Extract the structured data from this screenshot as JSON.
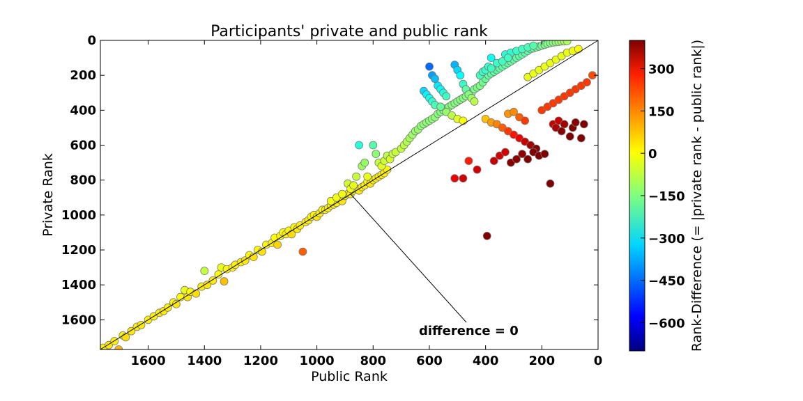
{
  "chart_data": {
    "type": "scatter",
    "title": "Participants' private and public rank",
    "xlabel": "Public Rank",
    "ylabel": "Private Rank",
    "xlim": [
      1770,
      0
    ],
    "ylim": [
      1770,
      0
    ],
    "xticks": [
      1600,
      1400,
      1200,
      1000,
      800,
      600,
      400,
      200,
      0
    ],
    "yticks": [
      0,
      200,
      400,
      600,
      800,
      1000,
      1200,
      1400,
      1600
    ],
    "x_inverted": true,
    "y_inverted": true,
    "color_by": "private rank - public rank",
    "colorbar": {
      "label": "Rank-Difference (= |private rank - public rank|)",
      "range": [
        -700,
        400
      ],
      "ticks": [
        300,
        150,
        0,
        -150,
        -300,
        -450,
        -600
      ],
      "colormap": "jet"
    },
    "reference_line": {
      "description": "y = x",
      "label": "difference = 0"
    },
    "points": [
      [
        1760,
        1760
      ],
      [
        1740,
        1745
      ],
      [
        1720,
        1722
      ],
      [
        1705,
        1770
      ],
      [
        1690,
        1690
      ],
      [
        1680,
        1700
      ],
      [
        1660,
        1665
      ],
      [
        1640,
        1640
      ],
      [
        1625,
        1630
      ],
      [
        1600,
        1600
      ],
      [
        1580,
        1580
      ],
      [
        1560,
        1560
      ],
      [
        1545,
        1550
      ],
      [
        1530,
        1530
      ],
      [
        1510,
        1500
      ],
      [
        1500,
        1510
      ],
      [
        1485,
        1470
      ],
      [
        1470,
        1430
      ],
      [
        1460,
        1470
      ],
      [
        1450,
        1440
      ],
      [
        1430,
        1450
      ],
      [
        1410,
        1410
      ],
      [
        1400,
        1320
      ],
      [
        1390,
        1400
      ],
      [
        1370,
        1375
      ],
      [
        1350,
        1340
      ],
      [
        1340,
        1300
      ],
      [
        1330,
        1380
      ],
      [
        1320,
        1310
      ],
      [
        1300,
        1300
      ],
      [
        1290,
        1285
      ],
      [
        1270,
        1270
      ],
      [
        1255,
        1260
      ],
      [
        1240,
        1230
      ],
      [
        1225,
        1240
      ],
      [
        1210,
        1200
      ],
      [
        1195,
        1210
      ],
      [
        1180,
        1170
      ],
      [
        1160,
        1160
      ],
      [
        1150,
        1130
      ],
      [
        1140,
        1170
      ],
      [
        1130,
        1120
      ],
      [
        1120,
        1100
      ],
      [
        1110,
        1110
      ],
      [
        1100,
        1090
      ],
      [
        1090,
        1110
      ],
      [
        1080,
        1070
      ],
      [
        1070,
        1080
      ],
      [
        1060,
        1060
      ],
      [
        1050,
        1210
      ],
      [
        1040,
        1040
      ],
      [
        1030,
        1030
      ],
      [
        1020,
        1010
      ],
      [
        1010,
        1000
      ],
      [
        1000,
        1010
      ],
      [
        990,
        990
      ],
      [
        980,
        970
      ],
      [
        970,
        970
      ],
      [
        960,
        960
      ],
      [
        950,
        945
      ],
      [
        940,
        940
      ],
      [
        930,
        930
      ],
      [
        920,
        910
      ],
      [
        910,
        920
      ],
      [
        900,
        890
      ],
      [
        890,
        880
      ],
      [
        880,
        880
      ],
      [
        870,
        860
      ],
      [
        860,
        850
      ],
      [
        850,
        860
      ],
      [
        840,
        840
      ],
      [
        830,
        830
      ],
      [
        820,
        810
      ],
      [
        810,
        820
      ],
      [
        800,
        800
      ],
      [
        790,
        790
      ],
      [
        780,
        780
      ],
      [
        770,
        770
      ],
      [
        760,
        760
      ],
      [
        750,
        740
      ],
      [
        950,
        920
      ],
      [
        930,
        900
      ],
      [
        910,
        880
      ],
      [
        890,
        820
      ],
      [
        880,
        850
      ],
      [
        870,
        830
      ],
      [
        860,
        780
      ],
      [
        850,
        600
      ],
      [
        840,
        720
      ],
      [
        830,
        700
      ],
      [
        820,
        780
      ],
      [
        800,
        600
      ],
      [
        790,
        650
      ],
      [
        780,
        700
      ],
      [
        770,
        720
      ],
      [
        760,
        690
      ],
      [
        750,
        660
      ],
      [
        740,
        680
      ],
      [
        730,
        650
      ],
      [
        720,
        640
      ],
      [
        700,
        620
      ],
      [
        690,
        600
      ],
      [
        680,
        580
      ],
      [
        670,
        560
      ],
      [
        660,
        540
      ],
      [
        650,
        520
      ],
      [
        640,
        510
      ],
      [
        630,
        490
      ],
      [
        620,
        480
      ],
      [
        610,
        470
      ],
      [
        600,
        460
      ],
      [
        590,
        450
      ],
      [
        580,
        440
      ],
      [
        570,
        420
      ],
      [
        560,
        410
      ],
      [
        550,
        400
      ],
      [
        540,
        390
      ],
      [
        530,
        380
      ],
      [
        520,
        370
      ],
      [
        510,
        360
      ],
      [
        500,
        350
      ],
      [
        490,
        340
      ],
      [
        480,
        330
      ],
      [
        470,
        320
      ],
      [
        460,
        310
      ],
      [
        450,
        300
      ],
      [
        440,
        280
      ],
      [
        430,
        270
      ],
      [
        420,
        260
      ],
      [
        410,
        240
      ],
      [
        400,
        220
      ],
      [
        390,
        200
      ],
      [
        380,
        190
      ],
      [
        370,
        180
      ],
      [
        360,
        170
      ],
      [
        350,
        160
      ],
      [
        340,
        150
      ],
      [
        330,
        140
      ],
      [
        320,
        130
      ],
      [
        310,
        120
      ],
      [
        300,
        110
      ],
      [
        290,
        100
      ],
      [
        280,
        90
      ],
      [
        270,
        80
      ],
      [
        260,
        70
      ],
      [
        250,
        60
      ],
      [
        240,
        50
      ],
      [
        230,
        45
      ],
      [
        220,
        40
      ],
      [
        210,
        35
      ],
      [
        200,
        30
      ],
      [
        190,
        25
      ],
      [
        180,
        20
      ],
      [
        170,
        15
      ],
      [
        160,
        12
      ],
      [
        150,
        10
      ],
      [
        140,
        8
      ],
      [
        130,
        6
      ],
      [
        120,
        5
      ],
      [
        110,
        4
      ],
      [
        600,
        150
      ],
      [
        590,
        200
      ],
      [
        580,
        220
      ],
      [
        570,
        260
      ],
      [
        560,
        280
      ],
      [
        550,
        300
      ],
      [
        540,
        320
      ],
      [
        510,
        140
      ],
      [
        500,
        170
      ],
      [
        490,
        200
      ],
      [
        480,
        250
      ],
      [
        470,
        280
      ],
      [
        460,
        310
      ],
      [
        450,
        330
      ],
      [
        440,
        350
      ],
      [
        420,
        200
      ],
      [
        410,
        180
      ],
      [
        400,
        170
      ],
      [
        390,
        150
      ],
      [
        380,
        160
      ],
      [
        620,
        290
      ],
      [
        610,
        310
      ],
      [
        600,
        330
      ],
      [
        590,
        350
      ],
      [
        580,
        370
      ],
      [
        560,
        380
      ],
      [
        540,
        410
      ],
      [
        520,
        430
      ],
      [
        500,
        450
      ],
      [
        480,
        460
      ],
      [
        400,
        450
      ],
      [
        380,
        470
      ],
      [
        360,
        480
      ],
      [
        340,
        500
      ],
      [
        320,
        520
      ],
      [
        300,
        540
      ],
      [
        280,
        560
      ],
      [
        260,
        580
      ],
      [
        240,
        600
      ],
      [
        220,
        620
      ],
      [
        370,
        690
      ],
      [
        350,
        660
      ],
      [
        330,
        640
      ],
      [
        310,
        700
      ],
      [
        290,
        680
      ],
      [
        270,
        650
      ],
      [
        250,
        680
      ],
      [
        230,
        640
      ],
      [
        210,
        660
      ],
      [
        190,
        650
      ],
      [
        170,
        820
      ],
      [
        395,
        1120
      ],
      [
        480,
        790
      ],
      [
        460,
        690
      ],
      [
        430,
        740
      ],
      [
        510,
        790
      ],
      [
        160,
        480
      ],
      [
        150,
        500
      ],
      [
        140,
        460
      ],
      [
        130,
        520
      ],
      [
        120,
        480
      ],
      [
        100,
        550
      ],
      [
        90,
        500
      ],
      [
        80,
        470
      ],
      [
        60,
        560
      ],
      [
        50,
        480
      ],
      [
        320,
        420
      ],
      [
        300,
        410
      ],
      [
        280,
        440
      ],
      [
        260,
        460
      ],
      [
        200,
        400
      ],
      [
        180,
        380
      ],
      [
        160,
        360
      ],
      [
        140,
        340
      ],
      [
        120,
        320
      ],
      [
        100,
        300
      ],
      [
        80,
        280
      ],
      [
        60,
        260
      ],
      [
        40,
        240
      ],
      [
        20,
        200
      ],
      [
        250,
        210
      ],
      [
        230,
        190
      ],
      [
        210,
        170
      ],
      [
        190,
        150
      ],
      [
        170,
        130
      ],
      [
        150,
        110
      ],
      [
        130,
        90
      ],
      [
        110,
        70
      ],
      [
        90,
        60
      ],
      [
        70,
        50
      ],
      [
        330,
        80
      ],
      [
        310,
        70
      ],
      [
        290,
        60
      ],
      [
        270,
        50
      ],
      [
        250,
        40
      ],
      [
        230,
        30
      ],
      [
        380,
        100
      ],
      [
        360,
        130
      ],
      [
        340,
        120
      ],
      [
        320,
        100
      ]
    ]
  }
}
